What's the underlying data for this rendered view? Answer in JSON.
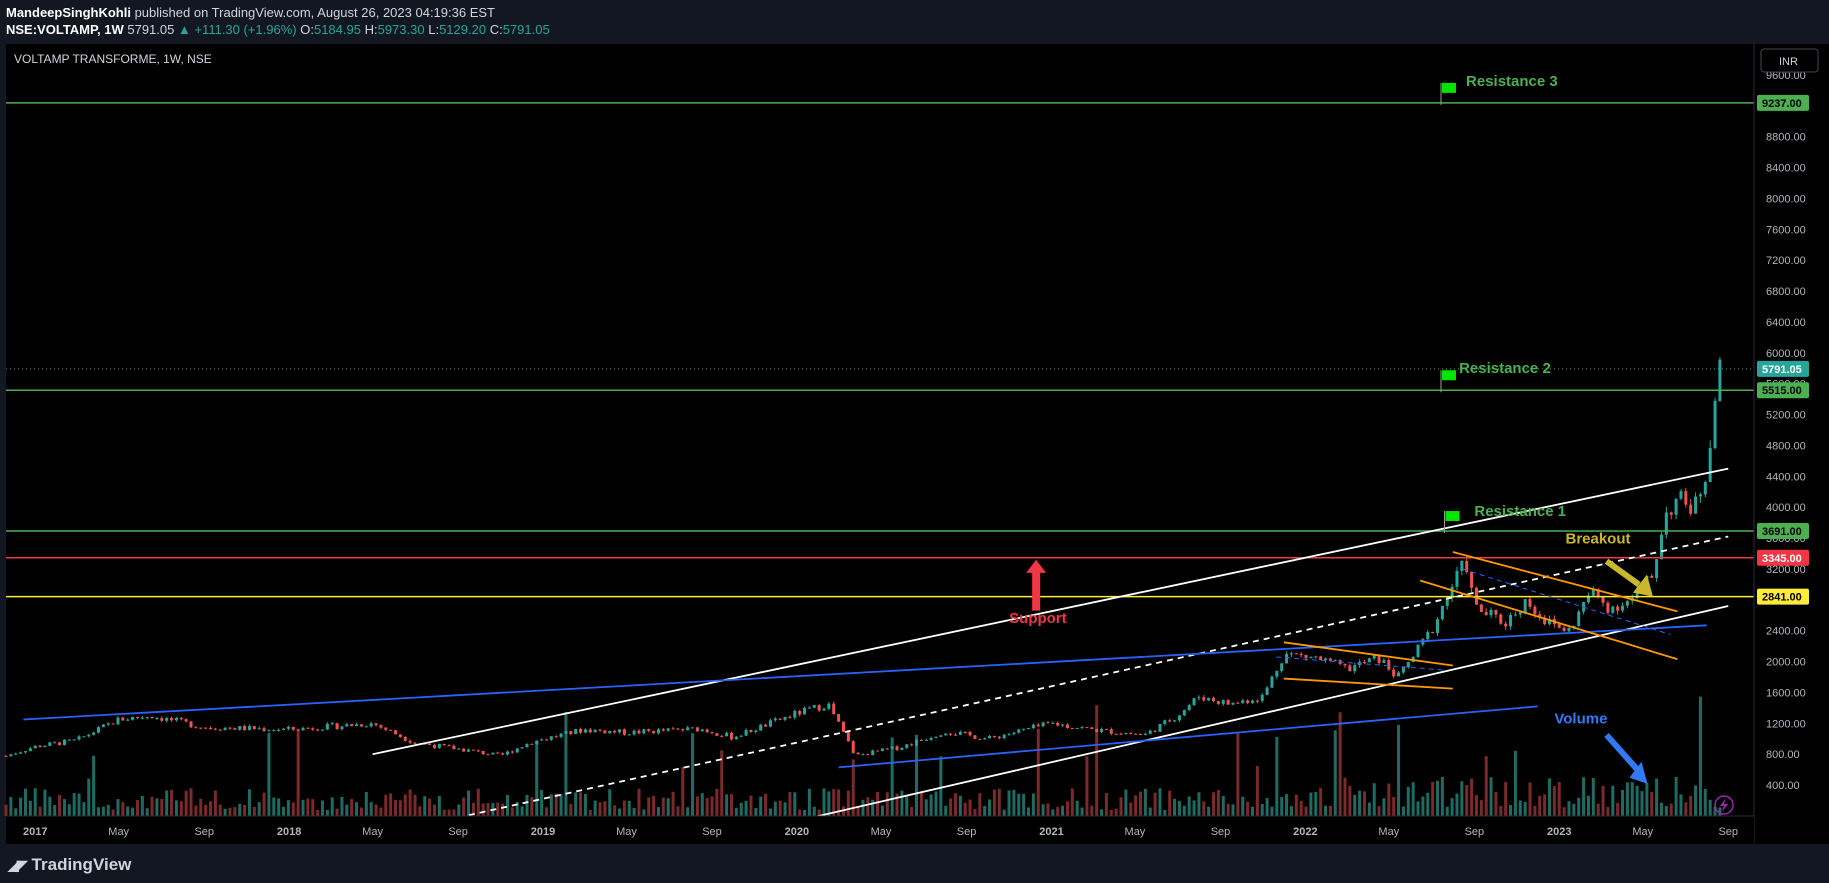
{
  "header": {
    "publisher": "MandeepSinghKohli",
    "published_text": "published on TradingView.com, August 26, 2023 04:19:36 EST",
    "symbol": "NSE:VOLTAMP, 1W",
    "last": "5791.05",
    "change": "▲ +111.30 (+1.96%)",
    "o_label": "O:",
    "o": "5184.95",
    "h_label": "H:",
    "h": "5973.30",
    "l_label": "L:",
    "l": "5129.20",
    "c_label": "C:",
    "c": "5791.05"
  },
  "chart_title": "VOLTAMP TRANSFORME, 1W, NSE",
  "currency": "INR",
  "footer": {
    "brand": "TradingView"
  },
  "colors": {
    "background": "#000000",
    "up": "#26a69a",
    "down": "#ef5350",
    "volume_up": "#1f6b63",
    "volume_down": "#7a2a2a",
    "resistance": "#4caf50",
    "support_red": "#f23645",
    "support_yellow": "#ffeb3b",
    "channel": "#ffffff",
    "trend_blue": "#2962ff",
    "pattern_orange": "#ff9800",
    "breakout": "#c9b82c",
    "volume_arrow": "#3179f5"
  },
  "chart_data": {
    "type": "candlestick",
    "title": "VOLTAMP TRANSFORME, 1W, NSE",
    "ylim": [
      0,
      10000
    ],
    "y_ticks": [
      400,
      800,
      1200,
      1600,
      2000,
      2400,
      2800,
      3200,
      3600,
      4000,
      4400,
      4800,
      5200,
      5600,
      6000,
      6400,
      6800,
      7200,
      7600,
      8000,
      8400,
      8800,
      9200,
      9600
    ],
    "y_tick_labels": [
      "400.00",
      "800.00",
      "1200.00",
      "1600.00",
      "2000.00",
      "2400.00",
      "2800.00",
      "3200.00",
      "3600.00",
      "4000.00",
      "4400.00",
      "4800.00",
      "5200.00",
      "5600.00",
      "6000.00",
      "6400.00",
      "6800.00",
      "7200.00",
      "7600.00",
      "8000.00",
      "8400.00",
      "8800.00",
      "9200.00",
      "9600.00"
    ],
    "x_range": [
      "2016-11-20",
      "2023-10-08"
    ],
    "x_ticks": [
      {
        "label": "2017",
        "date": "2017-01-01"
      },
      {
        "label": "May",
        "date": "2017-05-01"
      },
      {
        "label": "Sep",
        "date": "2017-09-01"
      },
      {
        "label": "2018",
        "date": "2018-01-01"
      },
      {
        "label": "May",
        "date": "2018-05-01"
      },
      {
        "label": "Sep",
        "date": "2018-09-01"
      },
      {
        "label": "2019",
        "date": "2019-01-01"
      },
      {
        "label": "May",
        "date": "2019-05-01"
      },
      {
        "label": "Sep",
        "date": "2019-09-01"
      },
      {
        "label": "2020",
        "date": "2020-01-01"
      },
      {
        "label": "May",
        "date": "2020-05-01"
      },
      {
        "label": "Sep",
        "date": "2020-09-01"
      },
      {
        "label": "2021",
        "date": "2021-01-01"
      },
      {
        "label": "May",
        "date": "2021-05-01"
      },
      {
        "label": "Sep",
        "date": "2021-09-01"
      },
      {
        "label": "2022",
        "date": "2022-01-01"
      },
      {
        "label": "May",
        "date": "2022-05-01"
      },
      {
        "label": "Sep",
        "date": "2022-09-01"
      },
      {
        "label": "2023",
        "date": "2023-01-01"
      },
      {
        "label": "May",
        "date": "2023-05-01"
      },
      {
        "label": "Sep",
        "date": "2023-09-01"
      }
    ],
    "price_path": [
      [
        "2016-11-20",
        780
      ],
      [
        "2017-01-01",
        900
      ],
      [
        "2017-03-01",
        980
      ],
      [
        "2017-05-01",
        1250
      ],
      [
        "2017-06-15",
        1300
      ],
      [
        "2017-09-01",
        1150
      ],
      [
        "2018-01-01",
        1120
      ],
      [
        "2018-05-01",
        1200
      ],
      [
        "2018-07-01",
        950
      ],
      [
        "2018-09-01",
        870
      ],
      [
        "2018-11-01",
        780
      ],
      [
        "2018-12-15",
        960
      ],
      [
        "2019-03-01",
        1120
      ],
      [
        "2019-05-01",
        1080
      ],
      [
        "2019-08-15",
        1130
      ],
      [
        "2019-10-01",
        1020
      ],
      [
        "2020-01-01",
        1330
      ],
      [
        "2020-02-15",
        1450
      ],
      [
        "2020-03-25",
        780
      ],
      [
        "2020-06-01",
        900
      ],
      [
        "2020-08-01",
        1100
      ],
      [
        "2020-10-01",
        1000
      ],
      [
        "2021-01-01",
        1200
      ],
      [
        "2021-03-01",
        1120
      ],
      [
        "2021-05-15",
        1050
      ],
      [
        "2021-07-01",
        1300
      ],
      [
        "2021-08-01",
        1550
      ],
      [
        "2021-09-15",
        1450
      ],
      [
        "2021-11-01",
        1550
      ],
      [
        "2021-12-01",
        2100
      ],
      [
        "2022-01-15",
        2050
      ],
      [
        "2022-03-01",
        1900
      ],
      [
        "2022-04-15",
        2050
      ],
      [
        "2022-05-15",
        1800
      ],
      [
        "2022-07-01",
        2400
      ],
      [
        "2022-08-01",
        3000
      ],
      [
        "2022-08-20",
        3300
      ],
      [
        "2022-09-01",
        2700
      ],
      [
        "2022-10-15",
        2500
      ],
      [
        "2022-11-15",
        2800
      ],
      [
        "2022-12-15",
        2500
      ],
      [
        "2023-01-15",
        2400
      ],
      [
        "2023-02-15",
        2900
      ],
      [
        "2023-03-15",
        2700
      ],
      [
        "2023-04-15",
        2800
      ],
      [
        "2023-05-15",
        3100
      ],
      [
        "2023-06-01",
        3900
      ],
      [
        "2023-06-20",
        4100
      ],
      [
        "2023-07-15",
        4000
      ],
      [
        "2023-08-01",
        4500
      ],
      [
        "2023-08-10",
        5250
      ],
      [
        "2023-08-20",
        5791
      ]
    ],
    "horizontal_levels": [
      {
        "name": "Resistance 3",
        "value": 9237.0,
        "label": "9237.00",
        "color": "#4caf50"
      },
      {
        "name": "Resistance 2",
        "value": 5515.0,
        "label": "5515.00",
        "color": "#4caf50"
      },
      {
        "name": "Resistance 1",
        "value": 3691.0,
        "label": "3691.00",
        "color": "#4caf50"
      },
      {
        "name": "",
        "value": 3345.0,
        "label": "3345.00",
        "color": "#f23645"
      },
      {
        "name": "",
        "value": 2841.0,
        "label": "2841.00",
        "color": "#ffeb3b"
      }
    ],
    "last_price": {
      "value": 5791.05,
      "label": "5791.05"
    },
    "trendlines": [
      {
        "kind": "channel-upper",
        "color": "#ffffff",
        "dash": false,
        "from": [
          "2018-05-01",
          800
        ],
        "to": [
          "2023-09-01",
          4500
        ]
      },
      {
        "kind": "channel-lower",
        "color": "#ffffff",
        "dash": false,
        "from": [
          "2019-12-15",
          -100
        ],
        "to": [
          "2023-09-01",
          2720
        ]
      },
      {
        "kind": "channel-mid",
        "color": "#ffffff",
        "dash": true,
        "from": [
          "2018-09-01",
          -20
        ],
        "to": [
          "2023-09-01",
          3620
        ]
      },
      {
        "kind": "blue-upper",
        "color": "#2962ff",
        "dash": false,
        "from": [
          "2016-12-15",
          1250
        ],
        "to": [
          "2023-08-01",
          2470
        ]
      },
      {
        "kind": "blue-lower",
        "color": "#2962ff",
        "dash": false,
        "from": [
          "2020-03-01",
          630
        ],
        "to": [
          "2022-12-01",
          1420
        ]
      },
      {
        "kind": "orange-1a",
        "color": "#ff9800",
        "dash": false,
        "from": [
          "2021-12-01",
          2250
        ],
        "to": [
          "2022-08-01",
          1950
        ]
      },
      {
        "kind": "orange-1b",
        "color": "#ff9800",
        "dash": false,
        "from": [
          "2021-12-01",
          1780
        ],
        "to": [
          "2022-08-01",
          1650
        ]
      },
      {
        "kind": "orange-2a",
        "color": "#ff9800",
        "dash": false,
        "from": [
          "2022-08-01",
          3420
        ],
        "to": [
          "2023-06-20",
          2650
        ]
      },
      {
        "kind": "orange-2b",
        "color": "#ff9800",
        "dash": false,
        "from": [
          "2022-06-15",
          3050
        ],
        "to": [
          "2023-06-20",
          2030
        ]
      }
    ],
    "annotations": [
      {
        "text": "Resistance 3",
        "color": "#4caf50"
      },
      {
        "text": "Resistance 2",
        "color": "#4caf50"
      },
      {
        "text": "Resistance 1",
        "color": "#4caf50"
      },
      {
        "text": "Support",
        "color": "#f23645"
      },
      {
        "text": "Breakout",
        "color": "#c9b82c"
      },
      {
        "text": "Volume",
        "color": "#3179f5"
      }
    ],
    "grid": false
  }
}
